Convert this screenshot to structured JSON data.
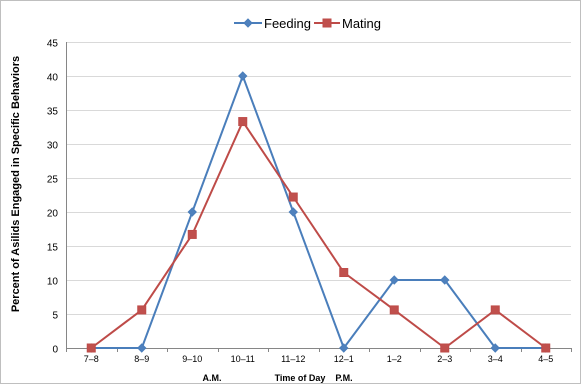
{
  "chart_data": {
    "type": "line",
    "categories": [
      "7–8",
      "8–9",
      "9–10",
      "10–11",
      "11–12",
      "12–1",
      "1–2",
      "2–3",
      "3–4",
      "4–5"
    ],
    "series": [
      {
        "name": "Feeding",
        "values": [
          0,
          0,
          20,
          40,
          20,
          0,
          10,
          10,
          0,
          0
        ],
        "color": "#4a7ebb",
        "marker": "diamond"
      },
      {
        "name": "Mating",
        "values": [
          0,
          5.6,
          16.7,
          33.3,
          22.2,
          11.1,
          5.6,
          0,
          5.6,
          0
        ],
        "color": "#be4b48",
        "marker": "square"
      }
    ],
    "ylabel": "Percent of Asilids Engaged in Specific Behaviors",
    "xlabel": "Time of Day",
    "x_annotations": [
      "A.M.",
      "P.M."
    ],
    "ylim": [
      0,
      45
    ],
    "yticks": [
      0,
      5,
      10,
      15,
      20,
      25,
      30,
      35,
      40,
      45
    ],
    "grid": true,
    "legend_position": "top-center"
  }
}
